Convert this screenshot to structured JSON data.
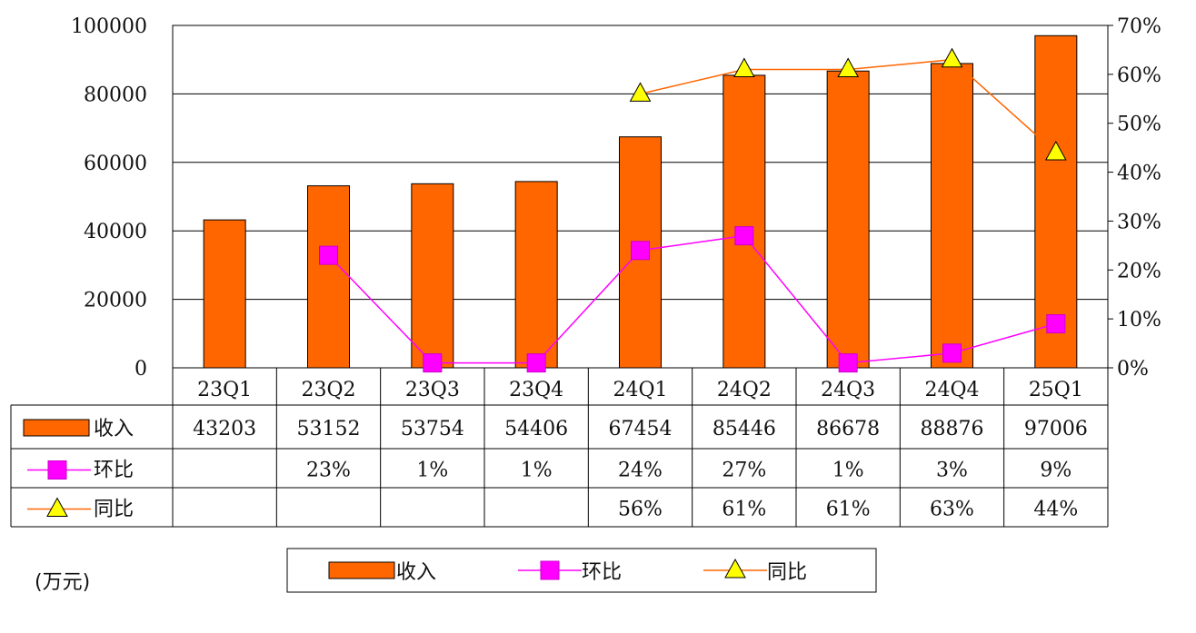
{
  "chart_data": {
    "type": "bar",
    "categories": [
      "23Q1",
      "23Q2",
      "23Q3",
      "23Q4",
      "24Q1",
      "24Q2",
      "24Q3",
      "24Q4",
      "25Q1"
    ],
    "series": [
      {
        "name": "收入",
        "kind": "bar",
        "axis": "left",
        "color": "#ff6600",
        "values": [
          43203,
          53152,
          53754,
          54406,
          67454,
          85446,
          86678,
          88876,
          97006
        ],
        "labels": [
          "43203",
          "53152",
          "53754",
          "54406",
          "67454",
          "85446",
          "86678",
          "88876",
          "97006"
        ]
      },
      {
        "name": "环比",
        "kind": "line",
        "axis": "right",
        "color": "#ff00ff",
        "marker": "square",
        "values": [
          null,
          23,
          1,
          1,
          24,
          27,
          1,
          3,
          9
        ],
        "labels": [
          "",
          "23%",
          "1%",
          "1%",
          "24%",
          "27%",
          "1%",
          "3%",
          "9%"
        ]
      },
      {
        "name": "同比",
        "kind": "line",
        "axis": "right",
        "color": "#ff6600",
        "marker": "triangle",
        "values": [
          null,
          null,
          null,
          null,
          56,
          61,
          61,
          63,
          44
        ],
        "labels": [
          "",
          "",
          "",
          "",
          "56%",
          "61%",
          "61%",
          "63%",
          "44%"
        ]
      }
    ],
    "y_left": {
      "range": [
        0,
        100000
      ],
      "ticks": [
        "0",
        "20000",
        "40000",
        "60000",
        "80000",
        "100000"
      ]
    },
    "y_right": {
      "range": [
        0,
        70
      ],
      "ticks": [
        "0%",
        "10%",
        "20%",
        "30%",
        "40%",
        "50%",
        "60%",
        "70%"
      ]
    },
    "grid": true,
    "legend": {
      "placement": "bottom",
      "items": [
        "收入",
        "环比",
        "同比"
      ]
    },
    "unit_label": "(万元)"
  }
}
